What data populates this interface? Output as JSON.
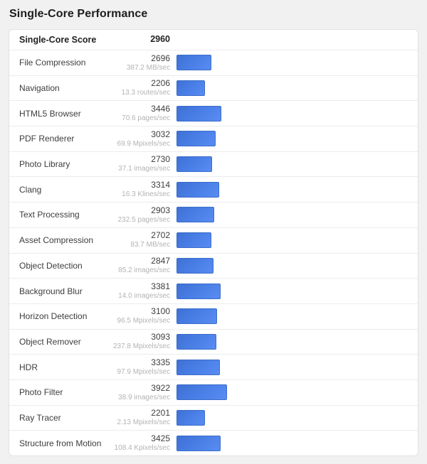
{
  "title": "Single-Core Performance",
  "header": {
    "label": "Single-Core Score",
    "value": "2960"
  },
  "colors": {
    "bar_fill_start": "#3f71d4",
    "bar_fill_end": "#5a8cf2",
    "bar_border": "#3b6cc9",
    "page_background": "#f1f1f1",
    "card_background": "#ffffff",
    "card_border": "#e2e2e2",
    "row_separator": "#ececec",
    "rate_text": "#b3b3b3"
  },
  "chart_data": {
    "type": "bar",
    "orientation": "horizontal",
    "title": "Single-Core Performance",
    "xlabel": "",
    "ylabel": "",
    "xlim": [
      0,
      3922
    ],
    "grid": false,
    "legend": false,
    "summary_label": "Single-Core Score",
    "summary_value": 2960,
    "categories": [
      "File Compression",
      "Navigation",
      "HTML5 Browser",
      "PDF Renderer",
      "Photo Library",
      "Clang",
      "Text Processing",
      "Asset Compression",
      "Object Detection",
      "Background Blur",
      "Horizon Detection",
      "Object Remover",
      "HDR",
      "Photo Filter",
      "Ray Tracer",
      "Structure from Motion"
    ],
    "values": [
      2696,
      2206,
      3446,
      3032,
      2730,
      3314,
      2903,
      2702,
      2847,
      3381,
      3100,
      3093,
      3335,
      3922,
      2201,
      3425
    ],
    "rate_labels": [
      "387.2 MB/sec",
      "13.3 routes/sec",
      "70.6 pages/sec",
      "69.9 Mpixels/sec",
      "37.1 images/sec",
      "16.3 Klines/sec",
      "232.5 pages/sec",
      "83.7 MB/sec",
      "85.2 images/sec",
      "14.0 images/sec",
      "96.5 Mpixels/sec",
      "237.8 Mpixels/sec",
      "97.9 Mpixels/sec",
      "38.9 images/sec",
      "2.13 Mpixels/sec",
      "108.4 Kpixels/sec"
    ]
  }
}
